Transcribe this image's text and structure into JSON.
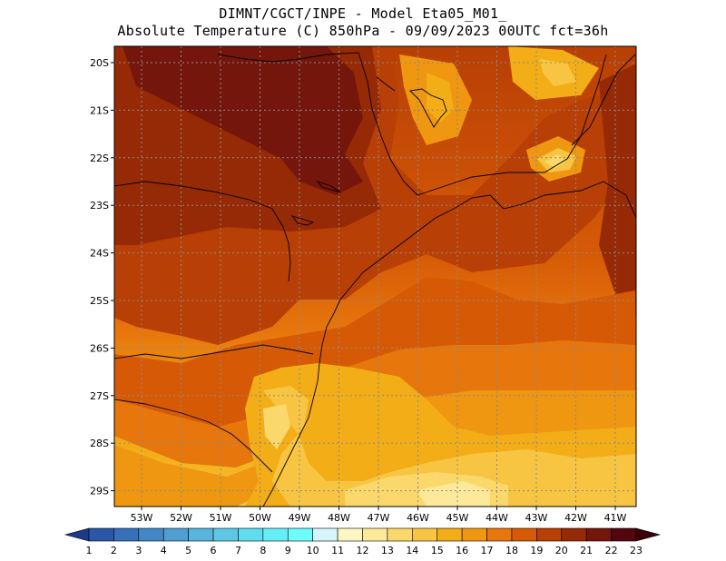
{
  "title": {
    "line1": "DIMNT/CGCT/INPE -  Model Eta05_M01_",
    "line2": "Absolute Temperature (C) 850hPa -  09/09/2023 00UTC fct=36h"
  },
  "map": {
    "variable": "Absolute Temperature",
    "units": "C",
    "level": "850hPa",
    "lat_labels": [
      "20S",
      "21S",
      "22S",
      "23S",
      "24S",
      "25S",
      "26S",
      "27S",
      "28S",
      "29S"
    ],
    "lon_labels": [
      "53W",
      "52W",
      "51W",
      "50W",
      "49W",
      "48W",
      "47W",
      "46W",
      "45W",
      "44W",
      "43W",
      "42W",
      "41W"
    ]
  },
  "colorbar": {
    "labels": [
      "1",
      "2",
      "3",
      "4",
      "5",
      "6",
      "7",
      "8",
      "9",
      "10",
      "11",
      "12",
      "13",
      "14",
      "15",
      "16",
      "17",
      "18",
      "19",
      "20",
      "21",
      "22",
      "23"
    ],
    "colors": [
      "#1d3a8a",
      "#2a58a6",
      "#3570b8",
      "#4387c6",
      "#4f9fd3",
      "#58b5de",
      "#5cc8e6",
      "#60dcee",
      "#66eef6",
      "#6ffcfc",
      "#d7f6fb",
      "#fdf7c4",
      "#fde99a",
      "#fbd86c",
      "#f8c542",
      "#f3ad16",
      "#ef9710",
      "#e7760c",
      "#d65a06",
      "#b83f05",
      "#962a06",
      "#75160c",
      "#54060f",
      "#3b0009"
    ]
  }
}
